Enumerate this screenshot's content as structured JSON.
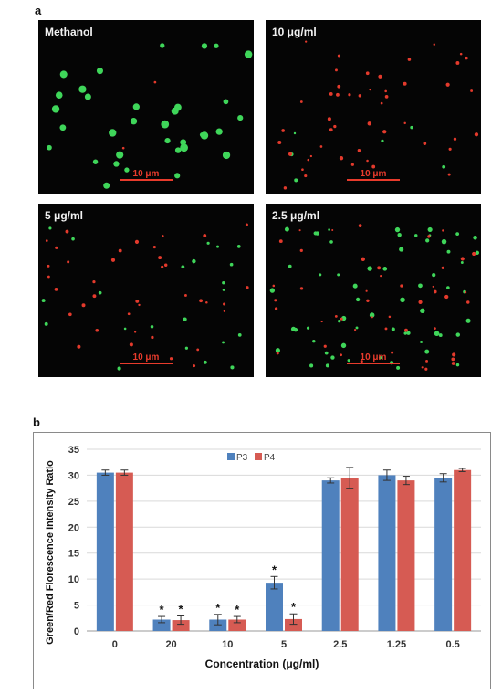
{
  "panel_a": {
    "letter": "a",
    "images": [
      {
        "label": "Methanol",
        "scalebar": "10 μm"
      },
      {
        "label": "10 μg/ml",
        "scalebar": "10 μm"
      },
      {
        "label": "5 μg/ml",
        "scalebar": "10 μm"
      },
      {
        "label": "2.5 μg/ml",
        "scalebar": "10 μm"
      }
    ]
  },
  "panel_b": {
    "letter": "b"
  },
  "colors": {
    "P3": "#4f81bd",
    "P4": "#d65b53",
    "green_signal": "#3fd65a",
    "red_signal": "#e43a2c"
  },
  "chart_data": {
    "type": "bar",
    "categories": [
      "0",
      "20",
      "10",
      "5",
      "2.5",
      "1.25",
      "0.5"
    ],
    "series": [
      {
        "name": "P3",
        "values": [
          30.5,
          2.2,
          2.2,
          9.3,
          29.0,
          30.0,
          29.5
        ],
        "errors": [
          0.5,
          0.6,
          1.0,
          1.2,
          0.5,
          1.0,
          0.8
        ]
      },
      {
        "name": "P4",
        "values": [
          30.5,
          2.1,
          2.2,
          2.3,
          29.5,
          29.0,
          31.0
        ],
        "errors": [
          0.5,
          0.8,
          0.6,
          1.0,
          2.0,
          0.8,
          0.3
        ]
      }
    ],
    "significance": {
      "symbol": "*",
      "P3": [
        false,
        true,
        true,
        true,
        false,
        false,
        false
      ],
      "P4": [
        false,
        true,
        true,
        true,
        false,
        false,
        false
      ]
    },
    "xlabel": "Concentration (μg/ml)",
    "ylabel": "Green/Red Florescence Intensity Ratio",
    "ylim": [
      0,
      35
    ],
    "yticks": [
      0,
      5,
      10,
      15,
      20,
      25,
      30,
      35
    ],
    "grid": true,
    "legend_position": "top-center"
  }
}
